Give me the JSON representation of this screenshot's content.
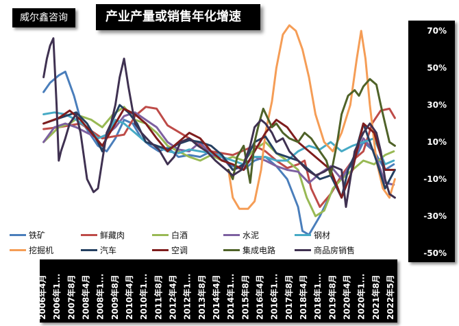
{
  "brand": "威尔鑫咨询",
  "chart_data": {
    "type": "line",
    "title": "产业产量或销售年化增速",
    "xlabel": "",
    "ylabel": "",
    "ylim": [
      -50,
      70
    ],
    "yticks": [
      70,
      50,
      30,
      10,
      -10,
      -30,
      -50
    ],
    "ytick_labels": [
      "70%",
      "50%",
      "30%",
      "10%",
      "-10%",
      "-30%",
      "-50%"
    ],
    "x_range": [
      2006.25,
      2022.5
    ],
    "xticks": [
      2006.25,
      2006.917,
      2007.583,
      2008.25,
      2008.917,
      2009.583,
      2010.25,
      2010.917,
      2011.583,
      2012.25,
      2012.917,
      2013.583,
      2014.25,
      2014.917,
      2015.583,
      2016.25,
      2016.917,
      2017.583,
      2018.25,
      2018.917,
      2019.583,
      2020.25,
      2020.917,
      2021.583,
      2022.25
    ],
    "xtick_labels": [
      "2006年4月",
      "2006年1...",
      "2007年8月",
      "2008年4月",
      "2008年1...",
      "2009年8月",
      "2010年4月",
      "2010年1...",
      "2011年8月",
      "2012年4月",
      "2012年1...",
      "2013年8月",
      "2014年4月",
      "2014年1...",
      "2015年8月",
      "2016年4月",
      "2016年1...",
      "2017年8月",
      "2018年4月",
      "2018年1...",
      "2019年8月",
      "2020年4月",
      "2020年1...",
      "2021年8月",
      "2022年5月"
    ],
    "grid": false,
    "legend_position": "bottom",
    "series": [
      {
        "name": "铁矿",
        "color": "#4a7ebb",
        "x": [
          2006.3,
          2006.6,
          2007.0,
          2007.3,
          2007.7,
          2008.0,
          2008.4,
          2008.8,
          2009.2,
          2009.6,
          2010.0,
          2010.4,
          2010.8,
          2011.2,
          2011.6,
          2012.0,
          2012.5,
          2013.0,
          2013.5,
          2014.0,
          2014.5,
          2015.0,
          2015.5,
          2016.0,
          2016.5,
          2017.0,
          2017.5,
          2018.0,
          2018.2,
          2018.5,
          2019.0,
          2019.5,
          2020.0,
          2020.5,
          2021.0,
          2021.5,
          2022.0,
          2022.4
        ],
        "y": [
          37,
          42,
          46,
          48,
          35,
          22,
          15,
          8,
          5,
          12,
          22,
          20,
          12,
          8,
          5,
          7,
          2,
          3,
          2,
          5,
          2,
          -3,
          -5,
          0,
          2,
          -3,
          -10,
          -25,
          -38,
          -40,
          -30,
          -18,
          -8,
          -2,
          10,
          5,
          -5,
          -2
        ]
      },
      {
        "name": "鲜藏肉",
        "color": "#be4b48",
        "x": [
          2006.3,
          2007.0,
          2008.0,
          2009.0,
          2010.0,
          2010.5,
          2011.0,
          2011.5,
          2012.0,
          2013.0,
          2014.0,
          2015.0,
          2016.0,
          2016.5,
          2017.0,
          2017.5,
          2018.0,
          2018.3,
          2018.6,
          2019.0,
          2019.5,
          2020.0,
          2020.5,
          2021.0,
          2021.4,
          2021.8,
          2022.2,
          2022.45
        ],
        "y": [
          17,
          18,
          20,
          12,
          14,
          24,
          29,
          28,
          19,
          12,
          5,
          3,
          8,
          5,
          0,
          -4,
          -2,
          0,
          -15,
          -25,
          -18,
          -8,
          0,
          5,
          20,
          27,
          28,
          23
        ]
      },
      {
        "name": "白酒",
        "color": "#98b954",
        "x": [
          2006.3,
          2007.0,
          2007.5,
          2008.0,
          2008.5,
          2009.0,
          2009.5,
          2010.0,
          2010.5,
          2011.0,
          2011.5,
          2012.0,
          2012.5,
          2013.0,
          2013.5,
          2014.0,
          2014.5,
          2015.0,
          2015.5,
          2016.0,
          2016.5,
          2017.0,
          2017.5,
          2018.0,
          2018.4,
          2018.8,
          2019.2,
          2019.6,
          2020.0,
          2020.5,
          2021.0,
          2021.5,
          2022.0,
          2022.4
        ],
        "y": [
          10,
          18,
          20,
          24,
          22,
          18,
          25,
          29,
          22,
          20,
          15,
          8,
          5,
          2,
          0,
          3,
          0,
          2,
          0,
          6,
          10,
          4,
          0,
          -5,
          -20,
          -30,
          -27,
          -15,
          -10,
          -5,
          0,
          -2,
          3,
          5
        ]
      },
      {
        "name": "水泥",
        "color": "#7d60a0",
        "x": [
          2006.3,
          2006.8,
          2007.3,
          2007.8,
          2008.3,
          2008.8,
          2009.2,
          2009.6,
          2010.0,
          2010.5,
          2011.0,
          2011.5,
          2012.0,
          2012.5,
          2013.0,
          2013.5,
          2014.0,
          2014.5,
          2015.0,
          2015.5,
          2016.0,
          2016.5,
          2017.0,
          2017.5,
          2018.0,
          2018.5,
          2019.0,
          2019.5,
          2020.0,
          2020.5,
          2021.0,
          2021.5,
          2022.0,
          2022.4
        ],
        "y": [
          10,
          18,
          20,
          18,
          15,
          12,
          14,
          18,
          24,
          26,
          22,
          18,
          10,
          6,
          5,
          10,
          3,
          2,
          -5,
          -3,
          2,
          0,
          -3,
          -5,
          -6,
          -12,
          -7,
          -3,
          -10,
          0,
          12,
          5,
          -12,
          -13
        ]
      },
      {
        "name": "钢材",
        "color": "#46aac5",
        "x": [
          2006.3,
          2006.8,
          2007.3,
          2007.8,
          2008.3,
          2008.8,
          2009.2,
          2009.6,
          2010.0,
          2010.5,
          2011.0,
          2011.5,
          2012.0,
          2012.5,
          2013.0,
          2013.5,
          2014.0,
          2014.5,
          2015.0,
          2015.5,
          2016.0,
          2016.5,
          2017.0,
          2017.5,
          2018.0,
          2018.5,
          2019.0,
          2019.5,
          2020.0,
          2020.5,
          2021.0,
          2021.5,
          2022.0,
          2022.4
        ],
        "y": [
          25,
          26,
          25,
          22,
          18,
          12,
          14,
          22,
          20,
          15,
          10,
          8,
          5,
          4,
          6,
          5,
          4,
          2,
          0,
          -2,
          2,
          2,
          0,
          0,
          5,
          8,
          6,
          10,
          5,
          8,
          10,
          12,
          -2,
          0
        ]
      },
      {
        "name": "挖掘机",
        "color": "#f59d56",
        "x": [
          2014.8,
          2015.0,
          2015.3,
          2015.7,
          2016.0,
          2016.3,
          2016.5,
          2016.8,
          2017.0,
          2017.3,
          2017.6,
          2017.9,
          2018.2,
          2018.5,
          2018.8,
          2019.2,
          2019.6,
          2020.0,
          2020.4,
          2020.7,
          2020.9,
          2021.1,
          2021.3,
          2021.6,
          2021.9,
          2022.2,
          2022.45
        ],
        "y": [
          -5,
          -20,
          -26,
          -26,
          -22,
          -5,
          15,
          32,
          50,
          68,
          73,
          70,
          60,
          45,
          25,
          10,
          5,
          15,
          30,
          55,
          70,
          55,
          30,
          0,
          -15,
          -20,
          -10
        ]
      },
      {
        "name": "汽车",
        "color": "#254061",
        "x": [
          2006.3,
          2006.8,
          2007.3,
          2007.8,
          2008.3,
          2008.8,
          2009.0,
          2009.4,
          2009.8,
          2010.2,
          2010.6,
          2011.0,
          2011.5,
          2012.0,
          2012.5,
          2013.0,
          2013.5,
          2014.0,
          2014.5,
          2015.0,
          2015.5,
          2016.0,
          2016.5,
          2017.0,
          2017.5,
          2018.0,
          2018.5,
          2019.0,
          2019.5,
          2020.0,
          2020.3,
          2020.6,
          2021.0,
          2021.3,
          2021.6,
          2022.0,
          2022.45
        ],
        "y": [
          20,
          22,
          24,
          26,
          20,
          10,
          5,
          20,
          30,
          26,
          20,
          10,
          8,
          6,
          9,
          11,
          10,
          8,
          3,
          -5,
          -2,
          10,
          13,
          4,
          2,
          0,
          -5,
          -10,
          -8,
          -20,
          -5,
          3,
          20,
          10,
          0,
          -15,
          -5
        ]
      },
      {
        "name": "空调",
        "color": "#7f1d1d",
        "x": [
          2006.3,
          2007.0,
          2007.5,
          2008.0,
          2008.5,
          2009.0,
          2009.5,
          2010.0,
          2010.5,
          2011.0,
          2011.5,
          2012.0,
          2012.5,
          2013.0,
          2013.5,
          2014.0,
          2014.5,
          2015.0,
          2015.5,
          2016.0,
          2016.5,
          2017.0,
          2017.5,
          2018.0,
          2018.5,
          2019.0,
          2019.5,
          2020.0,
          2020.5,
          2021.0,
          2021.5,
          2022.0,
          2022.4
        ],
        "y": [
          20,
          23,
          27,
          22,
          15,
          8,
          18,
          28,
          25,
          20,
          12,
          5,
          10,
          15,
          12,
          5,
          0,
          -2,
          -5,
          5,
          15,
          22,
          18,
          10,
          5,
          0,
          -5,
          -20,
          -5,
          20,
          15,
          -5,
          -5
        ]
      },
      {
        "name": "集成电路",
        "color": "#4f6228",
        "x": [
          2014.8,
          2015.0,
          2015.2,
          2015.5,
          2015.8,
          2016.0,
          2016.2,
          2016.4,
          2016.6,
          2016.8,
          2017.0,
          2017.3,
          2017.6,
          2018.0,
          2018.3,
          2018.6,
          2019.0,
          2019.3,
          2019.5,
          2019.8,
          2020.0,
          2020.3,
          2020.6,
          2020.8,
          2021.0,
          2021.3,
          2021.6,
          2021.8,
          2022.0,
          2022.2,
          2022.45
        ],
        "y": [
          -5,
          -10,
          2,
          8,
          -12,
          10,
          20,
          28,
          23,
          18,
          20,
          15,
          12,
          10,
          15,
          12,
          5,
          0,
          -8,
          10,
          25,
          35,
          38,
          35,
          40,
          44,
          41,
          30,
          20,
          10,
          8
        ]
      },
      {
        "name": "商品房销售",
        "color": "#3f3151",
        "x": [
          2006.3,
          2006.45,
          2006.6,
          2006.75,
          2006.9,
          2007.0,
          2007.1,
          2007.3,
          2007.5,
          2007.8,
          2008.0,
          2008.3,
          2008.6,
          2008.8,
          2009.0,
          2009.2,
          2009.4,
          2009.6,
          2009.8,
          2010.0,
          2010.2,
          2010.5,
          2010.8,
          2011.2,
          2011.6,
          2012.0,
          2012.3,
          2012.6,
          2013.0,
          2013.4,
          2013.8,
          2014.2,
          2014.6,
          2015.0,
          2015.4,
          2015.8,
          2016.0,
          2016.3,
          2016.5,
          2016.8,
          2017.0,
          2017.3,
          2017.6,
          2018.0,
          2018.4,
          2018.8,
          2019.2,
          2019.6,
          2020.0,
          2020.2,
          2020.4,
          2020.6,
          2021.0,
          2021.3,
          2021.6,
          2021.8,
          2022.0,
          2022.2,
          2022.45
        ],
        "y": [
          45,
          55,
          62,
          66,
          30,
          0,
          5,
          12,
          20,
          25,
          15,
          -10,
          -17,
          -15,
          0,
          15,
          20,
          30,
          45,
          55,
          40,
          20,
          15,
          10,
          6,
          -2,
          2,
          10,
          12,
          8,
          5,
          0,
          -4,
          -8,
          -5,
          8,
          18,
          22,
          20,
          15,
          10,
          12,
          5,
          0,
          -5,
          -8,
          -6,
          -3,
          -5,
          -25,
          -10,
          5,
          15,
          20,
          15,
          5,
          -10,
          -18,
          -20
        ]
      }
    ]
  }
}
